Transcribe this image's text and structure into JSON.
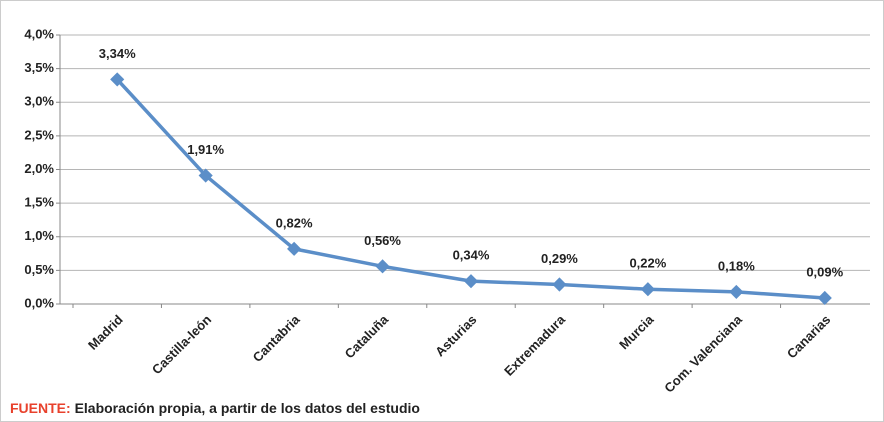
{
  "chart_data": {
    "type": "line",
    "categories": [
      "Madrid",
      "Castilla-león",
      "Cantabria",
      "Cataluña",
      "Asturias",
      "Extremadura",
      "Murcia",
      "Com. Valenciana",
      "Canarias"
    ],
    "values": [
      3.34,
      1.91,
      0.82,
      0.56,
      0.34,
      0.29,
      0.22,
      0.18,
      0.09
    ],
    "value_labels": [
      "3,34%",
      "1,91%",
      "0,82%",
      "0,56%",
      "0,34%",
      "0,29%",
      "0,22%",
      "0,18%",
      "0,09%"
    ],
    "color": "#5b8ec8",
    "label_color": "#e8412c",
    "ylim": [
      0,
      4
    ],
    "yticks": [
      {
        "value": 0,
        "label": "0,0%"
      },
      {
        "value": 0.5,
        "label": "0,5%"
      },
      {
        "value": 1,
        "label": "1,0%"
      },
      {
        "value": 1.5,
        "label": "1,5%"
      },
      {
        "value": 2,
        "label": "2,0%"
      },
      {
        "value": 2.5,
        "label": "2,5%"
      },
      {
        "value": 3,
        "label": "3,0%"
      },
      {
        "value": 3.5,
        "label": "3,5%"
      },
      {
        "value": 4,
        "label": "4,0%"
      }
    ],
    "grid": true,
    "source_label": "FUENTE:",
    "source": "Elaboración propia, a partir de los datos del estudio"
  }
}
